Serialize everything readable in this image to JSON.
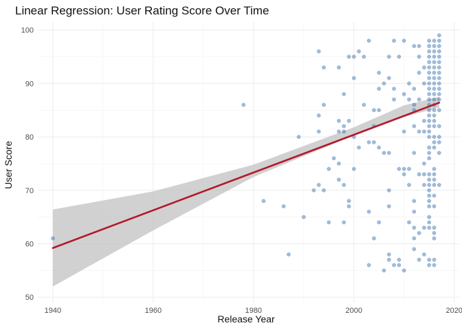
{
  "chart_data": {
    "type": "scatter",
    "title": "Linear Regression: User Rating Score Over Time",
    "xlabel": "Release Year",
    "ylabel": "User Score",
    "xlim": [
      1937,
      2021
    ],
    "ylim": [
      49,
      101.5
    ],
    "x_ticks": [
      1940,
      1960,
      1980,
      2000,
      2020
    ],
    "y_ticks": [
      50,
      60,
      70,
      80,
      90,
      100
    ],
    "grid": true,
    "legend": "none",
    "colors": {
      "points": "#2E6AA8",
      "fit_line": "#B2182B",
      "ribbon": "#BEBEBE"
    },
    "fit": {
      "method": "linear",
      "x": [
        1940,
        2017
      ],
      "y": [
        59.2,
        86.4
      ],
      "ci_lower": [
        52.0,
        85.5
      ],
      "ci_upper": [
        66.4,
        87.5
      ],
      "ci_x": [
        1940,
        1960,
        1980,
        2000,
        2010,
        2017
      ],
      "ci_lo": [
        52.0,
        62.5,
        72.5,
        80.3,
        83.7,
        85.5
      ],
      "ci_hi": [
        66.4,
        69.8,
        74.8,
        81.8,
        85.9,
        87.5
      ]
    },
    "points": [
      [
        1940,
        61
      ],
      [
        1978,
        86
      ],
      [
        1982,
        68
      ],
      [
        1986,
        67
      ],
      [
        1987,
        58
      ],
      [
        1989,
        80
      ],
      [
        1990,
        65
      ],
      [
        1992,
        70
      ],
      [
        1993,
        96
      ],
      [
        1993,
        84
      ],
      [
        1993,
        81
      ],
      [
        1993,
        71
      ],
      [
        1994,
        93
      ],
      [
        1994,
        86
      ],
      [
        1994,
        70
      ],
      [
        1995,
        74
      ],
      [
        1995,
        64
      ],
      [
        1996,
        76
      ],
      [
        1997,
        93
      ],
      [
        1997,
        83
      ],
      [
        1997,
        81
      ],
      [
        1997,
        75
      ],
      [
        1997,
        72
      ],
      [
        1998,
        88
      ],
      [
        1998,
        81
      ],
      [
        1998,
        82
      ],
      [
        1998,
        71
      ],
      [
        1998,
        64
      ],
      [
        1999,
        95
      ],
      [
        1999,
        83
      ],
      [
        1999,
        68
      ],
      [
        1999,
        67
      ],
      [
        2000,
        95
      ],
      [
        2000,
        91
      ],
      [
        2000,
        74
      ],
      [
        2000,
        80
      ],
      [
        2001,
        96
      ],
      [
        2001,
        78
      ],
      [
        2002,
        95
      ],
      [
        2002,
        86
      ],
      [
        2003,
        98
      ],
      [
        2003,
        79
      ],
      [
        2003,
        66
      ],
      [
        2003,
        56
      ],
      [
        2004,
        85
      ],
      [
        2004,
        82
      ],
      [
        2004,
        79
      ],
      [
        2004,
        61
      ],
      [
        2005,
        92
      ],
      [
        2005,
        89
      ],
      [
        2005,
        85
      ],
      [
        2005,
        78
      ],
      [
        2005,
        64
      ],
      [
        2006,
        90
      ],
      [
        2006,
        77
      ],
      [
        2006,
        55
      ],
      [
        2007,
        95
      ],
      [
        2007,
        91
      ],
      [
        2007,
        77
      ],
      [
        2007,
        70
      ],
      [
        2007,
        67
      ],
      [
        2007,
        58
      ],
      [
        2007,
        57
      ],
      [
        2008,
        98
      ],
      [
        2008,
        89
      ],
      [
        2008,
        87
      ],
      [
        2008,
        56
      ],
      [
        2009,
        95
      ],
      [
        2009,
        74
      ],
      [
        2009,
        57
      ],
      [
        2009,
        56
      ],
      [
        2010,
        98
      ],
      [
        2010,
        88
      ],
      [
        2010,
        81
      ],
      [
        2010,
        74
      ],
      [
        2010,
        73
      ],
      [
        2010,
        55
      ],
      [
        2011,
        90
      ],
      [
        2011,
        87
      ],
      [
        2011,
        74
      ],
      [
        2011,
        71
      ],
      [
        2011,
        64
      ],
      [
        2012,
        97
      ],
      [
        2012,
        89
      ],
      [
        2012,
        86
      ],
      [
        2012,
        85
      ],
      [
        2012,
        82
      ],
      [
        2012,
        77
      ],
      [
        2012,
        68
      ],
      [
        2012,
        66
      ],
      [
        2012,
        63
      ],
      [
        2012,
        61
      ],
      [
        2012,
        59
      ],
      [
        2013,
        97
      ],
      [
        2013,
        95
      ],
      [
        2013,
        92
      ],
      [
        2013,
        87
      ],
      [
        2013,
        81
      ],
      [
        2013,
        73
      ],
      [
        2013,
        62
      ],
      [
        2013,
        57
      ],
      [
        2014,
        93
      ],
      [
        2014,
        90
      ],
      [
        2014,
        83
      ],
      [
        2014,
        81
      ],
      [
        2014,
        75
      ],
      [
        2014,
        73
      ],
      [
        2014,
        71
      ],
      [
        2014,
        63
      ],
      [
        2014,
        58
      ],
      [
        2015,
        98
      ],
      [
        2015,
        97
      ],
      [
        2015,
        96
      ],
      [
        2015,
        95
      ],
      [
        2015,
        94
      ],
      [
        2015,
        93
      ],
      [
        2015,
        92
      ],
      [
        2015,
        91
      ],
      [
        2015,
        90
      ],
      [
        2015,
        89
      ],
      [
        2015,
        88
      ],
      [
        2015,
        87
      ],
      [
        2015,
        86
      ],
      [
        2015,
        85
      ],
      [
        2015,
        84
      ],
      [
        2015,
        83
      ],
      [
        2015,
        82
      ],
      [
        2015,
        81
      ],
      [
        2015,
        80
      ],
      [
        2015,
        78
      ],
      [
        2015,
        77
      ],
      [
        2015,
        76
      ],
      [
        2015,
        73
      ],
      [
        2015,
        72
      ],
      [
        2015,
        71
      ],
      [
        2015,
        70
      ],
      [
        2015,
        69
      ],
      [
        2015,
        68
      ],
      [
        2015,
        67
      ],
      [
        2015,
        65
      ],
      [
        2015,
        64
      ],
      [
        2015,
        63
      ],
      [
        2015,
        57
      ],
      [
        2015,
        56
      ],
      [
        2016,
        98
      ],
      [
        2016,
        97
      ],
      [
        2016,
        96
      ],
      [
        2016,
        95
      ],
      [
        2016,
        94
      ],
      [
        2016,
        93
      ],
      [
        2016,
        92
      ],
      [
        2016,
        91
      ],
      [
        2016,
        90
      ],
      [
        2016,
        89
      ],
      [
        2016,
        88
      ],
      [
        2016,
        87
      ],
      [
        2016,
        86
      ],
      [
        2016,
        85
      ],
      [
        2016,
        84
      ],
      [
        2016,
        83
      ],
      [
        2016,
        82
      ],
      [
        2016,
        80
      ],
      [
        2016,
        79
      ],
      [
        2016,
        78
      ],
      [
        2016,
        74
      ],
      [
        2016,
        73
      ],
      [
        2016,
        72
      ],
      [
        2016,
        71
      ],
      [
        2016,
        69
      ],
      [
        2016,
        67
      ],
      [
        2016,
        63
      ],
      [
        2016,
        62
      ],
      [
        2016,
        61
      ],
      [
        2016,
        57
      ],
      [
        2016,
        56
      ],
      [
        2017,
        99
      ],
      [
        2017,
        98
      ],
      [
        2017,
        97
      ],
      [
        2017,
        96
      ],
      [
        2017,
        95
      ],
      [
        2017,
        94
      ],
      [
        2017,
        93
      ],
      [
        2017,
        92
      ],
      [
        2017,
        91
      ],
      [
        2017,
        90
      ],
      [
        2017,
        89
      ],
      [
        2017,
        88
      ],
      [
        2017,
        87
      ],
      [
        2017,
        85
      ],
      [
        2017,
        82
      ],
      [
        2017,
        80
      ],
      [
        2017,
        79
      ],
      [
        2017,
        77
      ],
      [
        2017,
        71
      ]
    ]
  }
}
